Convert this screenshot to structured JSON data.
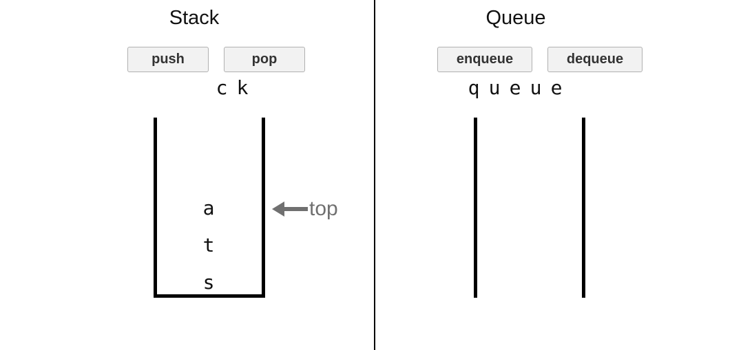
{
  "stack": {
    "title": "Stack",
    "push_label": "push",
    "pop_label": "pop",
    "pending": [
      "c",
      "k"
    ],
    "items": [
      "a",
      "t",
      "s"
    ],
    "pointer_label": "top"
  },
  "queue": {
    "title": "Queue",
    "enqueue_label": "enqueue",
    "dequeue_label": "dequeue",
    "pending": [
      "q",
      "u",
      "e",
      "u",
      "e"
    ],
    "items": []
  },
  "colors": {
    "pointer": "#707070",
    "button_bg": "#f2f2f2",
    "button_border": "#b0b0b0"
  },
  "icons": {
    "pointer": "left-arrow-icon"
  }
}
